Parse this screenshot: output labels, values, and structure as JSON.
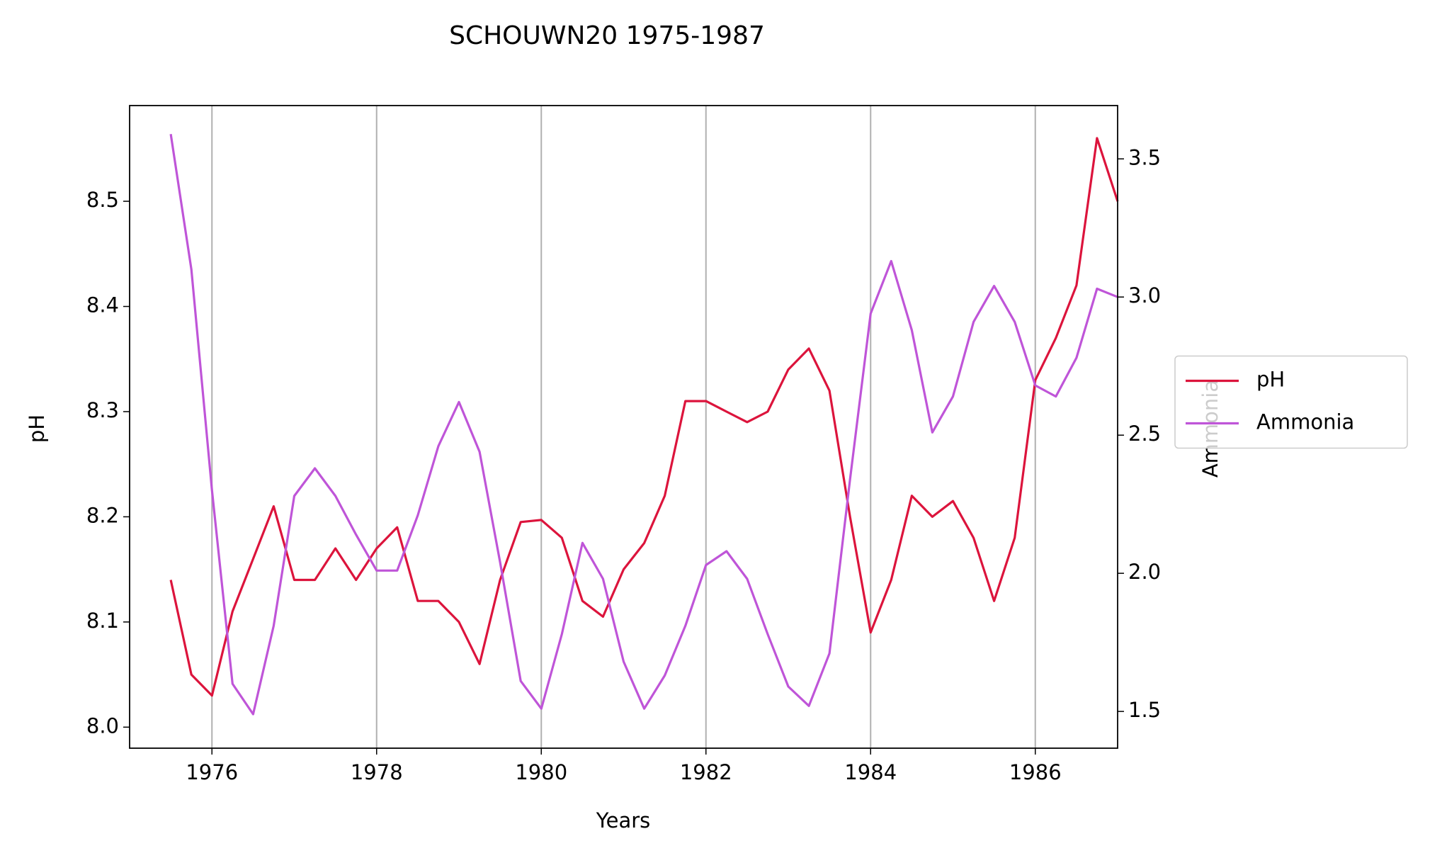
{
  "chart_data": {
    "type": "line",
    "title": "SCHOUWN20 1975-1987",
    "x_label": "Years",
    "y_label": "pH",
    "y2_label": "Ammonia",
    "x": [
      1975.5,
      1975.75,
      1976,
      1976.25,
      1976.5,
      1976.75,
      1977,
      1977.25,
      1977.5,
      1977.75,
      1978,
      1978.25,
      1978.5,
      1978.75,
      1979,
      1979.25,
      1979.5,
      1979.75,
      1980,
      1980.25,
      1980.5,
      1980.75,
      1981,
      1981.25,
      1981.5,
      1981.75,
      1982,
      1982.25,
      1982.5,
      1982.75,
      1983,
      1983.25,
      1983.5,
      1983.75,
      1984,
      1984.25,
      1984.5,
      1984.75,
      1985,
      1985.25,
      1985.5,
      1985.75,
      1986,
      1986.25,
      1986.5,
      1986.75,
      1987
    ],
    "series": [
      {
        "name": "pH",
        "color": "#dc143c",
        "axis": "y",
        "values": [
          8.14,
          8.05,
          8.03,
          8.11,
          8.16,
          8.21,
          8.14,
          8.14,
          8.17,
          8.14,
          8.17,
          8.19,
          8.12,
          8.12,
          8.1,
          8.06,
          8.14,
          8.195,
          8.197,
          8.18,
          8.12,
          8.105,
          8.15,
          8.175,
          8.22,
          8.31,
          8.31,
          8.3,
          8.29,
          8.3,
          8.34,
          8.36,
          8.32,
          8.2,
          8.09,
          8.14,
          8.22,
          8.2,
          8.215,
          8.18,
          8.12,
          8.18,
          8.33,
          8.37,
          8.42,
          8.56,
          8.5
        ]
      },
      {
        "name": "Ammonia",
        "color": "#bf55d8",
        "axis": "y2",
        "values": [
          3.59,
          3.1,
          2.3,
          1.6,
          1.49,
          1.81,
          2.28,
          2.38,
          2.28,
          2.14,
          2.01,
          2.01,
          2.21,
          2.46,
          2.62,
          2.44,
          2.04,
          1.61,
          1.51,
          1.78,
          2.11,
          1.98,
          1.68,
          1.51,
          1.63,
          1.81,
          2.03,
          2.08,
          1.98,
          1.78,
          1.59,
          1.52,
          1.71,
          2.34,
          2.94,
          3.13,
          2.88,
          2.51,
          2.64,
          2.91,
          3.04,
          2.91,
          2.68,
          2.64,
          2.78,
          3.03,
          3.0
        ]
      }
    ],
    "xlim": [
      1975.0,
      1987.0
    ],
    "xticks": [
      1976,
      1978,
      1980,
      1982,
      1984,
      1986
    ],
    "ylim": [
      7.98,
      8.591
    ],
    "yticks": [
      {
        "value": 8,
        "label": "8.0"
      },
      8.1,
      8.2,
      8.3,
      8.4,
      8.5
    ],
    "y2lim": [
      1.367,
      3.693
    ],
    "y2ticks": [
      1.5,
      {
        "value": 2,
        "label": "2.0"
      },
      2.5,
      {
        "value": 3,
        "label": "3.0"
      },
      3.5
    ],
    "grid": "x",
    "legend": "center right"
  }
}
